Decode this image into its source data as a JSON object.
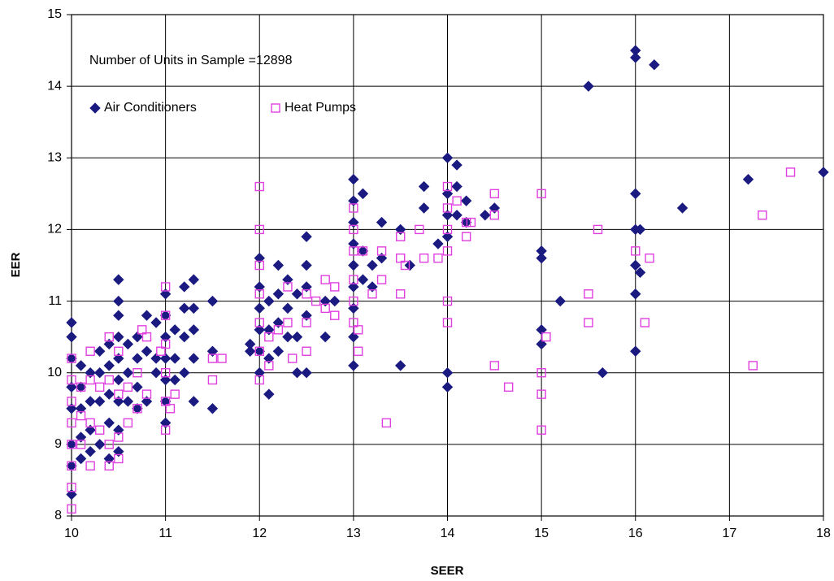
{
  "chart_data": {
    "type": "scatter",
    "annotation": "Number of Units in Sample =12898",
    "x_label": "SEER",
    "y_label": "EER",
    "xlim": [
      10,
      18
    ],
    "ylim": [
      8,
      15
    ],
    "xticks": [
      10,
      11,
      12,
      13,
      14,
      15,
      16,
      17,
      18
    ],
    "yticks": [
      8,
      9,
      10,
      11,
      12,
      13,
      14,
      15
    ],
    "grid": true,
    "legend": "top-left",
    "series": [
      {
        "name": "Air Conditioners",
        "color": "#1a1a80",
        "marker": "diamond",
        "x": [
          10,
          10,
          10,
          10,
          10,
          10,
          10,
          10,
          10.1,
          10.1,
          10.1,
          10.1,
          10.1,
          10.2,
          10.2,
          10.2,
          10.2,
          10.3,
          10.3,
          10.3,
          10.3,
          10.4,
          10.4,
          10.4,
          10.4,
          10.4,
          10.5,
          10.5,
          10.5,
          10.5,
          10.5,
          10.5,
          10.5,
          10.5,
          10.5,
          10.6,
          10.6,
          10.6,
          10.7,
          10.7,
          10.7,
          10.7,
          10.8,
          10.8,
          10.8,
          10.9,
          10.9,
          10.9,
          11,
          11,
          11,
          11,
          11,
          11,
          11,
          11.1,
          11.1,
          11.1,
          11.2,
          11.2,
          11.2,
          11.2,
          11.3,
          11.3,
          11.3,
          11.3,
          11.3,
          11.5,
          11.5,
          11.5,
          11.9,
          11.9,
          12,
          12,
          12,
          12,
          12,
          12,
          12.1,
          12.1,
          12.1,
          12.1,
          12.2,
          12.2,
          12.2,
          12.2,
          12.3,
          12.3,
          12.3,
          12.4,
          12.4,
          12.4,
          12.5,
          12.5,
          12.5,
          12.5,
          12.5,
          12.7,
          12.7,
          12.8,
          13,
          13,
          13,
          13,
          13,
          13,
          13,
          13,
          13,
          13.1,
          13.1,
          13.1,
          13.2,
          13.2,
          13.3,
          13.3,
          13.5,
          13.5,
          13.6,
          13.75,
          13.75,
          13.9,
          14,
          14,
          14,
          14,
          14,
          14,
          14.1,
          14.1,
          14.1,
          14.2,
          14.2,
          14.4,
          14.5,
          15,
          15,
          15,
          15,
          15.2,
          15.5,
          15.65,
          16,
          16,
          16,
          16,
          16,
          16,
          16,
          16.05,
          16.05,
          16.2,
          16.5,
          17.2,
          18
        ],
        "values": [
          10.7,
          10.5,
          10.2,
          9.8,
          9.5,
          9.0,
          8.7,
          8.3,
          10.1,
          9.8,
          9.5,
          9.1,
          8.8,
          10.0,
          9.6,
          9.2,
          8.9,
          10.3,
          10.0,
          9.6,
          9.0,
          10.4,
          10.1,
          9.7,
          9.3,
          8.8,
          11.3,
          11.0,
          10.8,
          10.5,
          10.2,
          9.9,
          9.6,
          9.2,
          8.9,
          10.4,
          10.0,
          9.6,
          10.5,
          10.2,
          9.8,
          9.5,
          10.8,
          10.3,
          9.6,
          10.7,
          10.2,
          10.0,
          11.1,
          10.8,
          10.5,
          10.2,
          9.9,
          9.6,
          9.3,
          10.6,
          10.2,
          9.9,
          11.2,
          10.9,
          10.5,
          10.0,
          11.3,
          10.9,
          10.6,
          10.2,
          9.6,
          11.0,
          10.3,
          9.5,
          10.4,
          10.3,
          11.6,
          11.2,
          10.9,
          10.6,
          10.3,
          10.0,
          11.0,
          10.6,
          10.2,
          9.7,
          11.5,
          11.1,
          10.7,
          10.3,
          11.3,
          10.9,
          10.5,
          11.1,
          10.5,
          10.0,
          11.9,
          11.5,
          11.2,
          10.8,
          10.0,
          11.0,
          10.5,
          11.0,
          12.7,
          12.4,
          12.1,
          11.8,
          11.5,
          11.2,
          10.9,
          10.5,
          10.1,
          12.5,
          11.7,
          11.3,
          11.5,
          11.2,
          12.1,
          11.6,
          12.0,
          10.1,
          11.5,
          12.6,
          12.3,
          11.8,
          13.0,
          12.5,
          12.2,
          11.9,
          10.0,
          9.8,
          12.9,
          12.6,
          12.2,
          12.4,
          12.1,
          12.2,
          12.3,
          11.7,
          11.6,
          10.6,
          10.4,
          11.0,
          14.0,
          10.0,
          14.5,
          14.4,
          12.5,
          12.0,
          11.5,
          11.1,
          10.3,
          11.4,
          12.0,
          14.3,
          12.3,
          12.7,
          12.8
        ]
      },
      {
        "name": "Heat Pumps",
        "color": "#e040e0",
        "marker": "square",
        "x": [
          10,
          10,
          10,
          10,
          10,
          10,
          10,
          10,
          10.1,
          10.1,
          10.1,
          10.2,
          10.2,
          10.2,
          10.2,
          10.3,
          10.3,
          10.4,
          10.4,
          10.4,
          10.4,
          10.5,
          10.5,
          10.5,
          10.5,
          10.6,
          10.6,
          10.7,
          10.7,
          10.75,
          10.8,
          10.8,
          10.95,
          11,
          11,
          11,
          11,
          11,
          11,
          11.05,
          11.1,
          11.5,
          11.5,
          11.6,
          12,
          12,
          12,
          12,
          12,
          12,
          12,
          12.1,
          12.1,
          12.2,
          12.3,
          12.3,
          12.35,
          12.5,
          12.5,
          12.5,
          12.6,
          12.7,
          12.7,
          12.8,
          12.8,
          13,
          13,
          13,
          13,
          13,
          13,
          13.05,
          13.05,
          13.1,
          13.2,
          13.3,
          13.3,
          13.35,
          13.5,
          13.5,
          13.5,
          13.55,
          13.7,
          13.75,
          13.9,
          14,
          14,
          14,
          14,
          14,
          14,
          14.1,
          14.2,
          14.2,
          14.25,
          14.5,
          14.5,
          14.5,
          14.65,
          15,
          15,
          15,
          15,
          15.05,
          15.5,
          15.5,
          15.6,
          16,
          16.1,
          16.15,
          17.25,
          17.35,
          17.65
        ],
        "values": [
          10.2,
          9.9,
          9.6,
          9.3,
          9.0,
          8.7,
          8.4,
          8.1,
          9.8,
          9.4,
          9.0,
          10.3,
          9.9,
          9.3,
          8.7,
          9.8,
          9.2,
          10.5,
          9.9,
          9.0,
          8.7,
          10.3,
          9.7,
          9.1,
          8.8,
          9.8,
          9.3,
          10.0,
          9.5,
          10.6,
          10.5,
          9.7,
          10.3,
          11.2,
          10.8,
          10.4,
          10.0,
          9.6,
          9.2,
          9.5,
          9.7,
          10.2,
          9.9,
          10.2,
          12.6,
          12.0,
          11.5,
          11.1,
          10.7,
          10.3,
          9.9,
          10.5,
          10.1,
          10.6,
          11.2,
          10.7,
          10.2,
          11.1,
          10.7,
          10.3,
          11.0,
          11.3,
          10.9,
          11.2,
          10.8,
          12.3,
          12.0,
          11.7,
          11.3,
          11.0,
          10.7,
          10.6,
          10.3,
          11.7,
          11.1,
          11.7,
          11.3,
          9.3,
          11.9,
          11.6,
          11.1,
          11.5,
          12.0,
          11.6,
          11.6,
          12.6,
          12.3,
          12.0,
          11.7,
          11.0,
          10.7,
          12.4,
          12.1,
          11.9,
          12.1,
          12.5,
          12.2,
          10.1,
          9.8,
          12.5,
          10.0,
          9.7,
          9.2,
          10.5,
          11.1,
          10.7,
          12.0,
          11.7,
          10.7,
          11.6,
          10.1,
          12.2,
          12.8
        ]
      }
    ]
  }
}
